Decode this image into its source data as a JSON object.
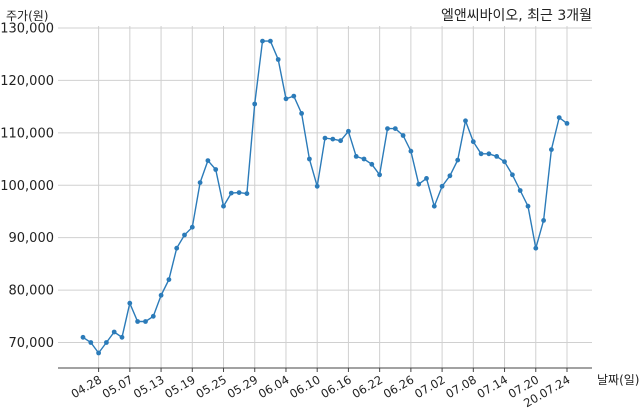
{
  "chart_data": {
    "type": "line",
    "title": "엘앤씨바이오, 최근 3개월",
    "ylabel": "주가(원)",
    "xlabel": "날짜(일)",
    "ylim": [
      65000,
      130000
    ],
    "yticks": [
      70000,
      80000,
      90000,
      100000,
      110000,
      120000,
      130000
    ],
    "ytick_labels": [
      "70,000",
      "80,000",
      "90,000",
      "100,000",
      "110,000",
      "120,000",
      "130,000"
    ],
    "xtick_labels": [
      "04.28",
      "05.07",
      "05.13",
      "05.19",
      "05.25",
      "05.29",
      "06.04",
      "06.10",
      "06.16",
      "06.22",
      "06.26",
      "07.02",
      "07.08",
      "07.14",
      "07.20",
      "20.07.24"
    ],
    "xtick_index": [
      2,
      6,
      10,
      14,
      18,
      22,
      26,
      30,
      34,
      38,
      42,
      46,
      50,
      54,
      58,
      62
    ],
    "grid": true,
    "color": "#2b7bb9",
    "series": [
      {
        "values": [
          71000,
          70000,
          68000,
          70000,
          72000,
          71000,
          77500,
          74000,
          74000,
          75000,
          79000,
          82000,
          88000,
          90500,
          92000,
          100500,
          104700,
          103000,
          96000,
          98500,
          98600,
          98400,
          115500,
          127500,
          127500,
          124000,
          116500,
          117000,
          113700,
          105000,
          99800,
          109000,
          108800,
          108500,
          110300,
          105500,
          105000,
          104000,
          102000,
          110800,
          110800,
          109500,
          106500,
          100200,
          101300,
          96000,
          99800,
          101800,
          104800,
          112300,
          108300,
          106000,
          106000,
          105500,
          104500,
          102000,
          99000,
          96000,
          88000,
          93300,
          106800,
          112900,
          111800
        ]
      }
    ]
  }
}
